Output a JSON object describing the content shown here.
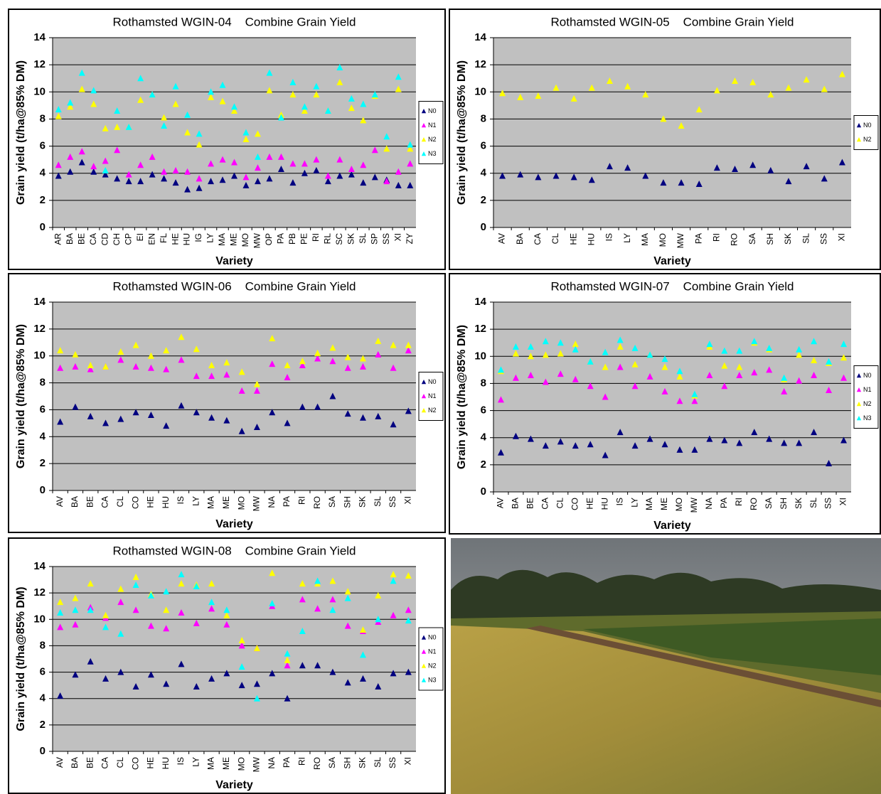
{
  "chart_data": [
    {
      "type": "scatter",
      "title": "Rothamsted WGIN-04    Combine Grain Yield",
      "y_label": "Grain yield (t/ha@85% DM)",
      "x_label": "Variety",
      "categories": [
        "AR",
        "BA",
        "BE",
        "CA",
        "CD",
        "CH",
        "CP",
        "EI",
        "EN",
        "FL",
        "HE",
        "HU",
        "IG",
        "LY",
        "MA",
        "ME",
        "MO",
        "MW",
        "OP",
        "PA",
        "PB",
        "PE",
        "RI",
        "RL",
        "SC",
        "SK",
        "SL",
        "SP",
        "SS",
        "XI",
        "ZY"
      ],
      "ylim": [
        0,
        14
      ],
      "yticks": [
        0,
        2,
        4,
        6,
        8,
        10,
        12,
        14
      ],
      "grid": true,
      "series": [
        {
          "name": "N0",
          "color": "#000080",
          "values": [
            3.8,
            4.1,
            4.8,
            4.1,
            3.9,
            3.6,
            3.4,
            3.4,
            3.9,
            3.6,
            3.3,
            2.8,
            2.9,
            3.4,
            3.5,
            3.8,
            3.1,
            3.4,
            3.6,
            4.3,
            3.3,
            4.0,
            4.2,
            3.4,
            3.8,
            3.9,
            3.3,
            3.7,
            3.5,
            3.1,
            3.1
          ]
        },
        {
          "name": "N1",
          "color": "#ff00ff",
          "values": [
            4.6,
            5.2,
            5.6,
            4.5,
            4.9,
            5.7,
            3.9,
            4.6,
            5.2,
            4.1,
            4.2,
            4.1,
            3.6,
            4.7,
            5.0,
            4.8,
            3.7,
            4.4,
            5.2,
            5.2,
            4.7,
            4.7,
            5.0,
            3.8,
            5.0,
            4.3,
            4.6,
            5.7,
            3.4,
            4.1,
            4.7
          ]
        },
        {
          "name": "N2",
          "color": "#ffff00",
          "values": [
            8.2,
            8.9,
            10.2,
            9.1,
            7.3,
            7.4,
            7.4,
            9.4,
            9.8,
            8.1,
            9.1,
            7.0,
            6.1,
            9.6,
            9.3,
            8.6,
            6.5,
            6.9,
            10.1,
            8.3,
            9.8,
            8.6,
            9.8,
            8.6,
            10.7,
            8.8,
            7.9,
            9.7,
            5.8,
            10.2,
            5.8
          ]
        },
        {
          "name": "N3",
          "color": "#00ffff",
          "values": [
            8.7,
            9.2,
            11.4,
            10.1,
            4.2,
            8.6,
            7.4,
            11.0,
            9.8,
            7.5,
            10.4,
            8.3,
            6.9,
            10.0,
            10.5,
            8.9,
            7.0,
            5.2,
            11.4,
            8.1,
            10.7,
            8.9,
            10.4,
            8.6,
            11.8,
            9.5,
            9.1,
            9.8,
            6.7,
            11.1,
            6.1
          ]
        }
      ]
    },
    {
      "type": "scatter",
      "title": "Rothamsted WGIN-05    Combine Grain Yield",
      "y_label": "Grain yield (t/ha@85% DM)",
      "x_label": "Variety",
      "categories": [
        "AV",
        "BA",
        "CA",
        "CL",
        "HE",
        "HU",
        "IS",
        "LY",
        "MA",
        "MO",
        "MW",
        "PA",
        "RI",
        "RO",
        "SA",
        "SH",
        "SK",
        "SL",
        "SS",
        "XI"
      ],
      "ylim": [
        0,
        14
      ],
      "yticks": [
        0,
        2,
        4,
        6,
        8,
        10,
        12,
        14
      ],
      "grid": true,
      "series": [
        {
          "name": "N0",
          "color": "#000080",
          "values": [
            3.8,
            3.9,
            3.7,
            3.8,
            3.7,
            3.5,
            4.5,
            4.4,
            3.8,
            3.3,
            3.3,
            3.2,
            4.4,
            4.3,
            4.6,
            4.2,
            3.4,
            4.5,
            3.6,
            4.8
          ]
        },
        {
          "name": "N2",
          "color": "#ffff00",
          "values": [
            9.9,
            9.6,
            9.7,
            10.3,
            9.5,
            10.3,
            10.8,
            10.4,
            9.8,
            8.0,
            7.5,
            8.7,
            10.1,
            10.8,
            10.7,
            9.8,
            10.3,
            10.9,
            10.2,
            11.3
          ]
        }
      ]
    },
    {
      "type": "scatter",
      "title": "Rothamsted WGIN-06    Combine Grain Yield",
      "y_label": "Grain yield (t/ha@85% DM)",
      "x_label": "Variety",
      "categories": [
        "AV",
        "BA",
        "BE",
        "CA",
        "CL",
        "CO",
        "HE",
        "HU",
        "IS",
        "LY",
        "MA",
        "ME",
        "MO",
        "MW",
        "NA",
        "PA",
        "RI",
        "RO",
        "SA",
        "SH",
        "SK",
        "SL",
        "SS",
        "XI"
      ],
      "ylim": [
        0,
        14
      ],
      "yticks": [
        0,
        2,
        4,
        6,
        8,
        10,
        12,
        14
      ],
      "grid": true,
      "series": [
        {
          "name": "N0",
          "color": "#000080",
          "values": [
            5.1,
            6.2,
            5.5,
            5.0,
            5.3,
            5.8,
            5.6,
            4.8,
            6.3,
            5.8,
            5.4,
            5.2,
            4.4,
            4.7,
            5.8,
            5.0,
            6.2,
            6.2,
            7.0,
            5.7,
            5.4,
            5.5,
            4.9,
            5.9
          ]
        },
        {
          "name": "N1",
          "color": "#ff00ff",
          "values": [
            9.1,
            9.2,
            9.0,
            9.2,
            9.7,
            9.2,
            9.1,
            9.0,
            9.7,
            8.5,
            8.5,
            8.6,
            7.4,
            7.4,
            9.4,
            8.4,
            9.3,
            9.8,
            9.6,
            9.1,
            9.2,
            10.1,
            9.1,
            10.4
          ]
        },
        {
          "name": "N2",
          "color": "#ffff00",
          "values": [
            10.4,
            10.1,
            9.3,
            9.2,
            10.3,
            10.8,
            10.0,
            10.4,
            11.4,
            10.5,
            9.3,
            9.5,
            8.8,
            7.9,
            11.3,
            9.3,
            9.6,
            10.2,
            10.6,
            9.9,
            9.8,
            11.1,
            10.8,
            10.8
          ]
        }
      ]
    },
    {
      "type": "scatter",
      "title": "Rothamsted WGIN-07    Combine Grain Yield",
      "y_label": "Grain yield (t/ha@85% DM)",
      "x_label": "Variety",
      "categories": [
        "AV",
        "BA",
        "BE",
        "CA",
        "CL",
        "CO",
        "HE",
        "HU",
        "IS",
        "LY",
        "MA",
        "ME",
        "MO",
        "MW",
        "NA",
        "PA",
        "RI",
        "RO",
        "SA",
        "SH",
        "SK",
        "SL",
        "SS",
        "XI"
      ],
      "ylim": [
        0,
        14
      ],
      "yticks": [
        0,
        2,
        4,
        6,
        8,
        10,
        12,
        14
      ],
      "grid": true,
      "series": [
        {
          "name": "N0",
          "color": "#000080",
          "values": [
            2.9,
            4.1,
            3.9,
            3.4,
            3.7,
            3.4,
            3.5,
            2.7,
            4.4,
            3.4,
            3.9,
            3.5,
            3.1,
            3.1,
            3.9,
            3.8,
            3.6,
            4.4,
            3.9,
            3.6,
            3.6,
            4.4,
            2.1,
            3.8
          ]
        },
        {
          "name": "N1",
          "color": "#ff00ff",
          "values": [
            6.8,
            8.4,
            8.6,
            8.1,
            8.7,
            8.3,
            7.8,
            7.0,
            9.2,
            7.8,
            8.5,
            7.4,
            6.7,
            6.7,
            8.6,
            7.8,
            8.6,
            8.8,
            9.0,
            7.4,
            8.2,
            8.6,
            7.5,
            8.4
          ]
        },
        {
          "name": "N2",
          "color": "#ffff00",
          "values": [
            8.9,
            10.2,
            10.0,
            10.1,
            10.2,
            10.9,
            9.6,
            9.2,
            10.7,
            9.4,
            10.1,
            9.2,
            8.5,
            7.1,
            10.7,
            9.3,
            9.2,
            11.0,
            10.5,
            8.3,
            10.1,
            9.7,
            9.5,
            9.9
          ]
        },
        {
          "name": "N3",
          "color": "#00ffff",
          "values": [
            9.0,
            10.7,
            10.7,
            11.1,
            11.0,
            10.5,
            9.6,
            10.3,
            11.2,
            10.6,
            10.1,
            9.8,
            8.9,
            7.2,
            10.9,
            10.4,
            10.4,
            11.1,
            10.6,
            8.4,
            10.5,
            11.1,
            9.6,
            10.9
          ]
        }
      ]
    },
    {
      "type": "scatter",
      "title": "Rothamsted WGIN-08    Combine Grain Yield",
      "y_label": "Grain yield (t/ha@85% DM)",
      "x_label": "Variety",
      "categories": [
        "AV",
        "BA",
        "BE",
        "CA",
        "CL",
        "CO",
        "HE",
        "HU",
        "IS",
        "LY",
        "MA",
        "ME",
        "MO",
        "MW",
        "NA",
        "PA",
        "RI",
        "RO",
        "SA",
        "SH",
        "SK",
        "SL",
        "SS",
        "XI"
      ],
      "ylim": [
        0,
        14
      ],
      "yticks": [
        0,
        2,
        4,
        6,
        8,
        10,
        12,
        14
      ],
      "grid": true,
      "series": [
        {
          "name": "N0",
          "color": "#000080",
          "values": [
            4.2,
            5.8,
            6.8,
            5.5,
            6.0,
            4.9,
            5.8,
            5.1,
            6.6,
            4.9,
            5.5,
            5.9,
            5.0,
            5.1,
            5.9,
            4.0,
            6.5,
            6.5,
            6.0,
            5.2,
            5.5,
            4.9,
            5.9,
            6.0
          ]
        },
        {
          "name": "N1",
          "color": "#ff00ff",
          "values": [
            9.4,
            9.6,
            10.9,
            10.1,
            11.3,
            10.7,
            9.5,
            9.3,
            10.5,
            9.7,
            10.8,
            9.6,
            8.0,
            7.8,
            11.0,
            6.5,
            11.5,
            10.8,
            11.5,
            9.5,
            9.1,
            9.8,
            10.3,
            10.7
          ]
        },
        {
          "name": "N2",
          "color": "#ffff00",
          "values": [
            11.3,
            11.6,
            12.7,
            10.3,
            12.3,
            13.2,
            11.9,
            10.7,
            12.7,
            12.6,
            12.7,
            10.3,
            8.4,
            7.8,
            13.5,
            6.9,
            12.7,
            12.7,
            12.9,
            12.1,
            9.2,
            11.8,
            13.4,
            13.3
          ]
        },
        {
          "name": "N3",
          "color": "#00ffff",
          "values": [
            10.5,
            10.7,
            10.7,
            9.4,
            8.9,
            12.6,
            11.8,
            12.1,
            13.4,
            12.5,
            11.3,
            10.7,
            6.4,
            4.0,
            11.2,
            7.4,
            9.1,
            12.9,
            10.7,
            11.6,
            7.3,
            10.0,
            12.9,
            9.9
          ]
        }
      ]
    }
  ]
}
